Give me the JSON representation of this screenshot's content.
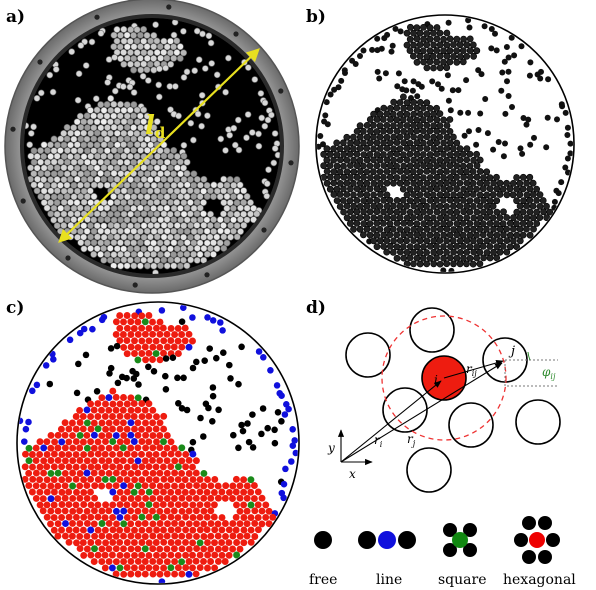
{
  "figure": {
    "panels": [
      {
        "id": "a",
        "label": "a)"
      },
      {
        "id": "b",
        "label": "b)"
      },
      {
        "id": "c",
        "label": "c)"
      },
      {
        "id": "d",
        "label": "d)"
      }
    ],
    "panel_a": {
      "diameter_symbol": "l",
      "diameter_subscript": "d"
    },
    "panel_d": {
      "particle_i": "i",
      "particle_j": "j",
      "r_ij": "r",
      "r_ij_sub": "ij",
      "r_i": "r",
      "r_i_sub": "i",
      "r_j": "r",
      "r_j_sub": "j",
      "phi_ij": "φ",
      "phi_ij_sub": "ij",
      "axis_x": "x",
      "axis_y": "y"
    },
    "legend": [
      {
        "label": "free",
        "color": "#000000"
      },
      {
        "label": "line",
        "color": "#0000ee"
      },
      {
        "label": "square",
        "color": "#118811"
      },
      {
        "label": "hexagonal",
        "color": "#ee0000"
      }
    ],
    "colors": {
      "hexagonal": "#ee1c10",
      "square": "#1a8a1a",
      "line": "#1010dd",
      "free": "#000000",
      "arrow": "#e8e020",
      "dashed_circle": "#ee3333",
      "phi_green": "#2e8b2e"
    }
  }
}
